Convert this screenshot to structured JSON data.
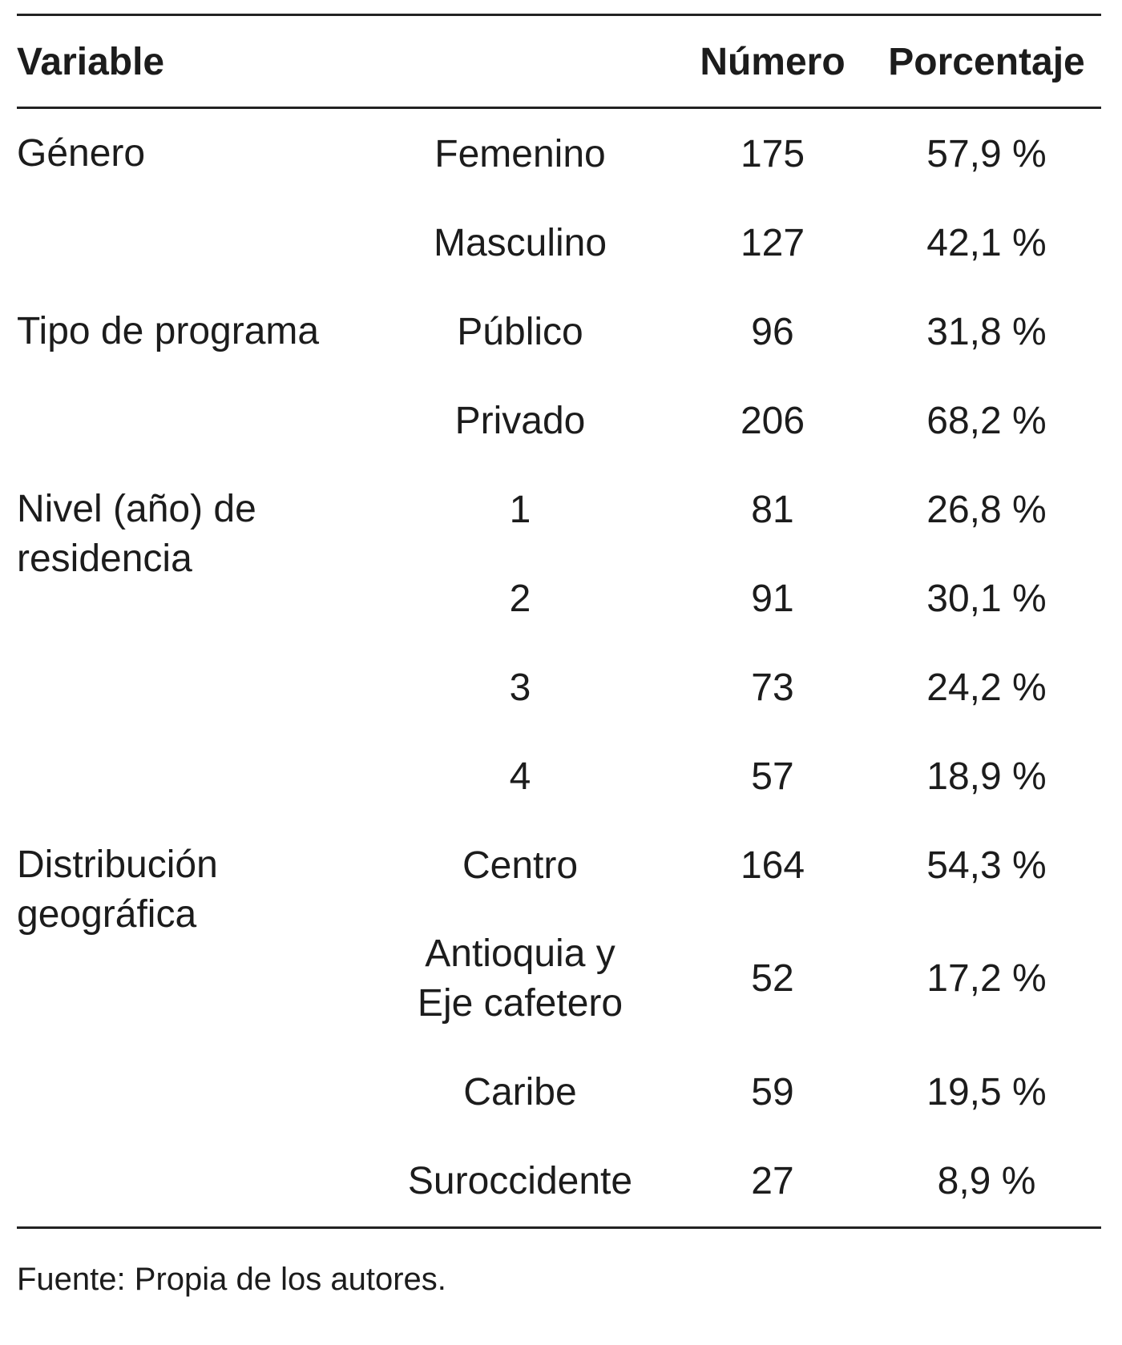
{
  "header": {
    "variable": "Variable",
    "number": "Número",
    "percent": "Porcentaje"
  },
  "groups": [
    {
      "label": "Género",
      "rows": [
        {
          "category": "Femenino",
          "number": "175",
          "percent": "57,9 %"
        },
        {
          "category": "Masculino",
          "number": "127",
          "percent": "42,1 %"
        }
      ]
    },
    {
      "label": "Tipo de programa",
      "rows": [
        {
          "category": "Público",
          "number": "96",
          "percent": "31,8 %"
        },
        {
          "category": "Privado",
          "number": "206",
          "percent": "68,2 %"
        }
      ]
    },
    {
      "label": "Nivel (año) de residencia",
      "rows": [
        {
          "category": "1",
          "number": "81",
          "percent": "26,8 %"
        },
        {
          "category": "2",
          "number": "91",
          "percent": "30,1 %"
        },
        {
          "category": "3",
          "number": "73",
          "percent": "24,2 %"
        },
        {
          "category": "4",
          "number": "57",
          "percent": "18,9 %"
        }
      ]
    },
    {
      "label": "Distribución geográfica",
      "rows": [
        {
          "category": "Centro",
          "number": "164",
          "percent": "54,3 %"
        },
        {
          "category": "Antioquia y Eje cafetero",
          "number": "52",
          "percent": "17,2 %"
        },
        {
          "category": "Caribe",
          "number": "59",
          "percent": "19,5 %"
        },
        {
          "category": "Suroccidente",
          "number": "27",
          "percent": "8,9 %"
        }
      ]
    }
  ],
  "footnote": "Fuente: Propia de los autores."
}
